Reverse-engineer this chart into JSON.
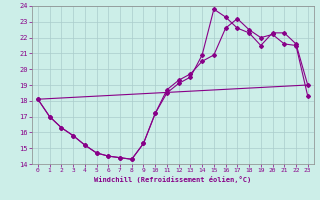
{
  "xlabel": "Windchill (Refroidissement éolien,°C)",
  "xlim": [
    -0.5,
    23.5
  ],
  "ylim": [
    14,
    24
  ],
  "xticks": [
    0,
    1,
    2,
    3,
    4,
    5,
    6,
    7,
    8,
    9,
    10,
    11,
    12,
    13,
    14,
    15,
    16,
    17,
    18,
    19,
    20,
    21,
    22,
    23
  ],
  "yticks": [
    14,
    15,
    16,
    17,
    18,
    19,
    20,
    21,
    22,
    23,
    24
  ],
  "bg_color": "#cceee8",
  "line_color": "#880088",
  "grid_color": "#aacccc",
  "line1_x": [
    0,
    1,
    2,
    3,
    4,
    5,
    6,
    7,
    8,
    9,
    10,
    11,
    12,
    13,
    14,
    15,
    16,
    17,
    18,
    19,
    20,
    21,
    22,
    23
  ],
  "line1_y": [
    18.1,
    17.0,
    16.3,
    15.8,
    15.2,
    14.7,
    14.5,
    14.4,
    14.3,
    15.3,
    17.2,
    18.7,
    19.3,
    19.7,
    20.5,
    20.9,
    22.6,
    23.2,
    22.5,
    22.0,
    22.2,
    21.6,
    21.5,
    18.3
  ],
  "line2_x": [
    0,
    1,
    2,
    3,
    4,
    5,
    6,
    7,
    8,
    9,
    10,
    11,
    12,
    13,
    14,
    15,
    16,
    17,
    18,
    19,
    20,
    21,
    22,
    23
  ],
  "line2_y": [
    18.1,
    17.0,
    16.3,
    15.8,
    15.2,
    14.7,
    14.5,
    14.4,
    14.3,
    15.3,
    17.2,
    18.5,
    19.1,
    19.5,
    20.9,
    23.8,
    23.3,
    22.6,
    22.3,
    21.5,
    22.3,
    22.3,
    21.6,
    19.0
  ],
  "line3_x": [
    0,
    23
  ],
  "line3_y": [
    18.1,
    19.0
  ],
  "line4_x": [
    22,
    23
  ],
  "line4_y": [
    18.4,
    19.0
  ]
}
